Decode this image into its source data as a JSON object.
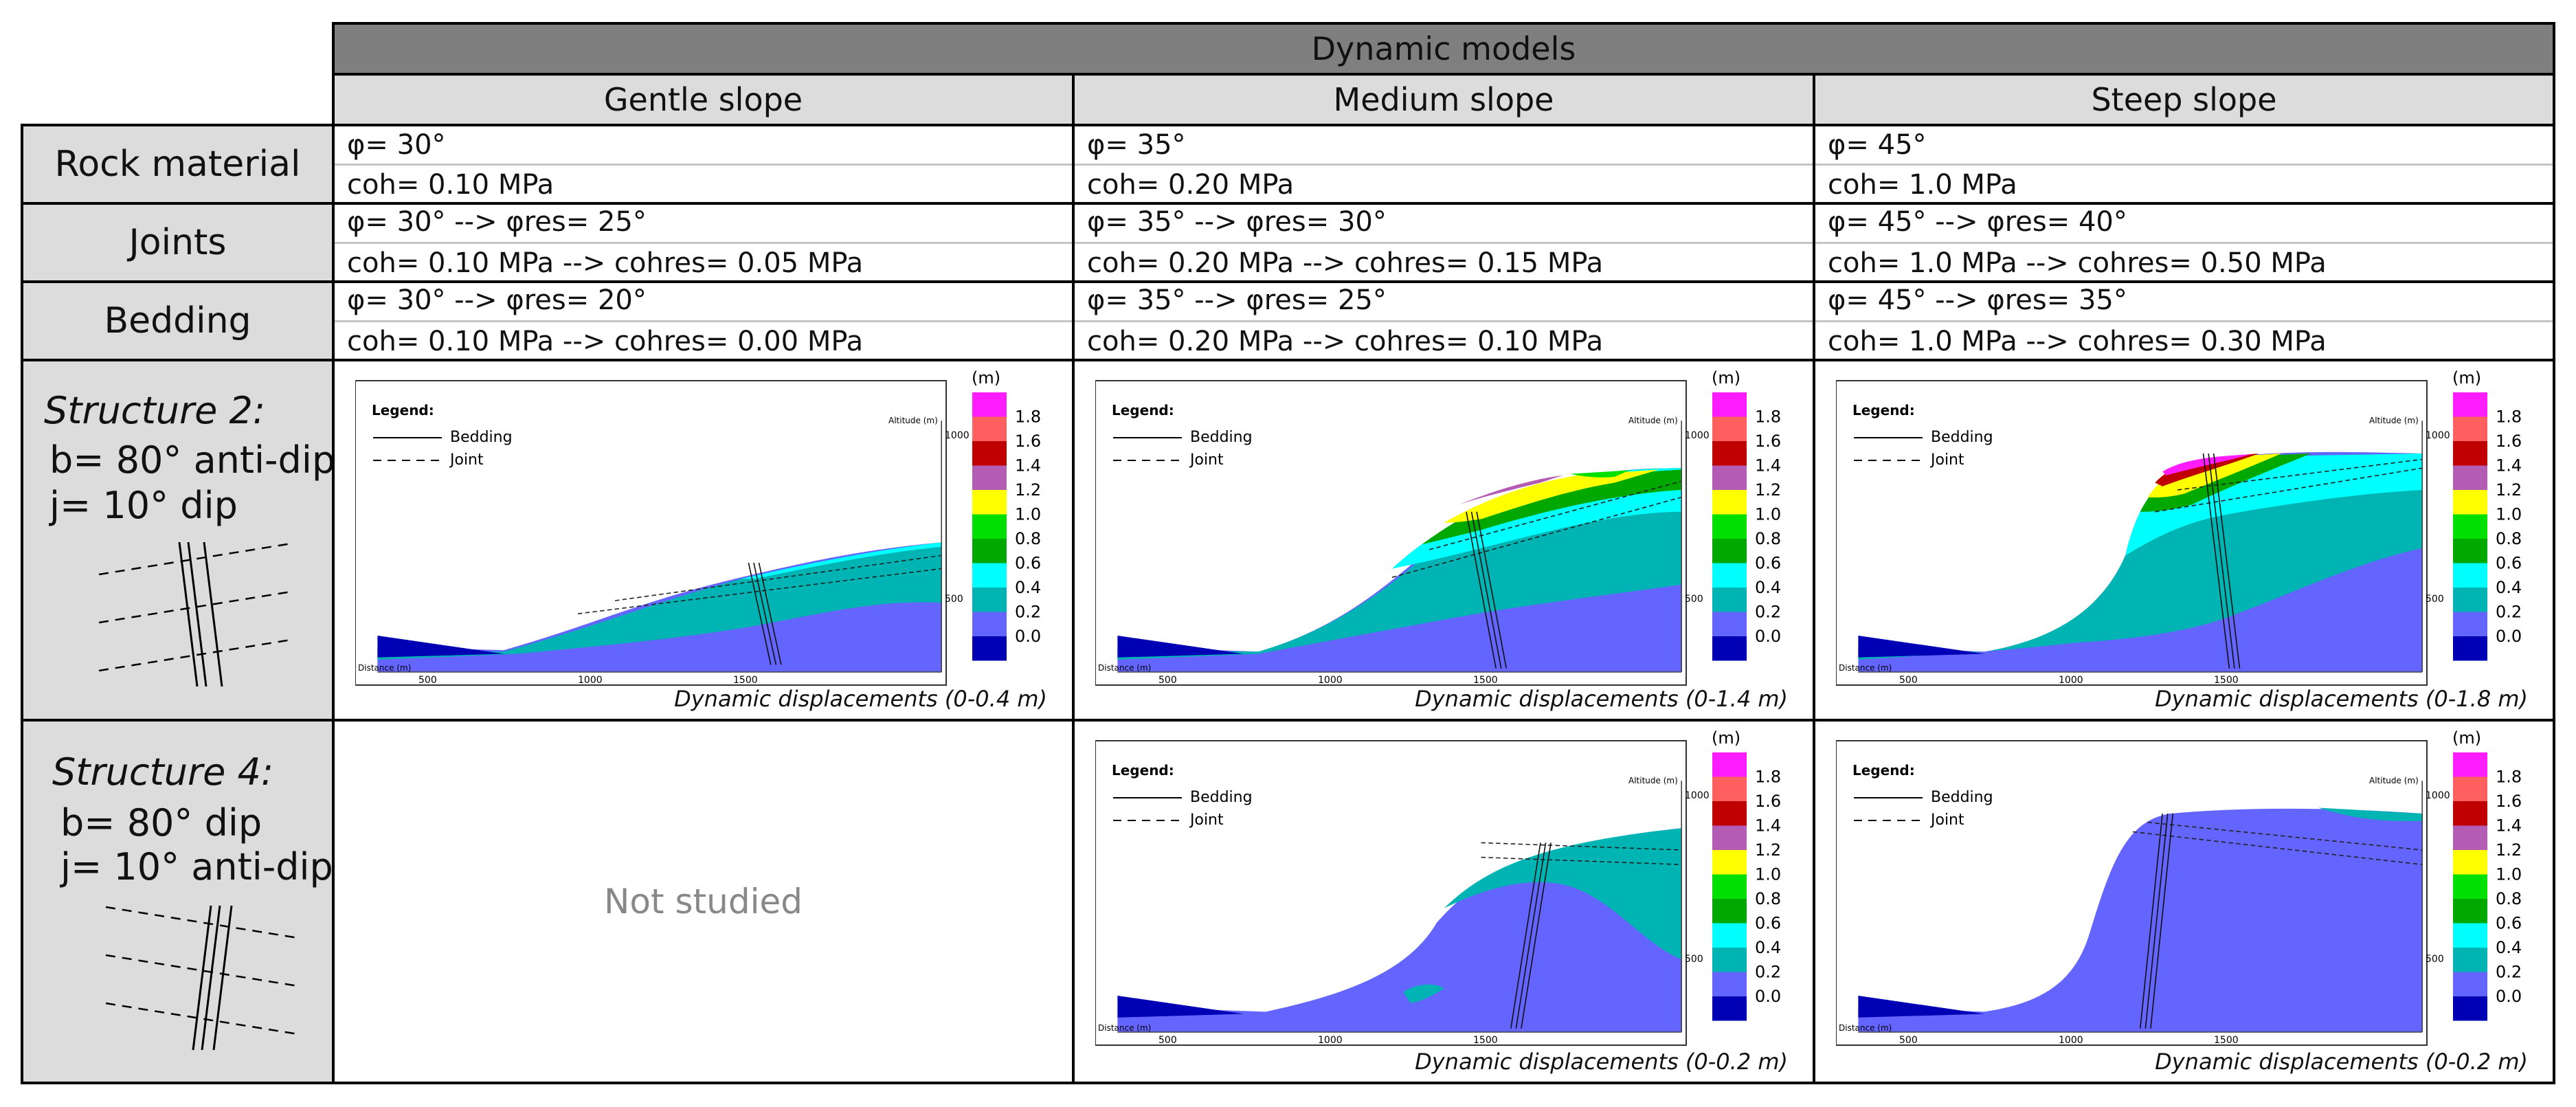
{
  "header": {
    "top": "Dynamic models",
    "cols": [
      "Gentle slope",
      "Medium slope",
      "Steep slope"
    ]
  },
  "rows": [
    {
      "label": "Rock material",
      "cells": [
        [
          "φ= 30°",
          "coh= 0.10 MPa"
        ],
        [
          "φ= 35°",
          "coh= 0.20 MPa"
        ],
        [
          "φ= 45°",
          "coh= 1.0 MPa"
        ]
      ]
    },
    {
      "label": "Joints",
      "cells": [
        [
          "φ= 30° --> φres= 25°",
          "coh= 0.10 MPa --> cohres= 0.05 MPa"
        ],
        [
          "φ= 35° --> φres= 30°",
          "coh= 0.20 MPa --> cohres= 0.15 MPa"
        ],
        [
          "φ= 45° --> φres= 40°",
          "coh= 1.0 MPa --> cohres= 0.50 MPa"
        ]
      ]
    },
    {
      "label": "Bedding",
      "cells": [
        [
          "φ= 30° --> φres= 20°",
          "coh= 0.10 MPa --> cohres= 0.00 MPa"
        ],
        [
          "φ= 35° --> φres= 25°",
          "coh= 0.20 MPa --> cohres= 0.10 MPa"
        ],
        [
          "φ= 45° --> φres= 35°",
          "coh= 1.0 MPa --> cohres= 0.30 MPa"
        ]
      ]
    }
  ],
  "structures": [
    {
      "title": "Structure 2:",
      "b": "b= 80° anti-dip",
      "j": "j= 10° dip"
    },
    {
      "title": "Structure 4:",
      "b": "b= 80° dip",
      "j": "j= 10° anti-dip"
    }
  ],
  "plot_labels": {
    "legend_title": "Legend:",
    "bedding": "Bedding",
    "joint": "Joint",
    "altitude": "Altitude (m)",
    "distance": "Distance (m)",
    "x_ticks": [
      "500",
      "1000",
      "1500"
    ],
    "y_ticks": [
      "1000",
      "500"
    ]
  },
  "colorbar": {
    "unit": "(m)",
    "labels": [
      "1.8",
      "1.6",
      "1.4",
      "1.2",
      "1.0",
      "0.8",
      "0.6",
      "0.4",
      "0.2",
      "0.0"
    ],
    "colors": [
      "#ff1cff",
      "#ff5f5f",
      "#c00000",
      "#b45cb4",
      "#ffff00",
      "#00e000",
      "#00a800",
      "#00ffff",
      "#00b4b4",
      "#6464ff",
      "#0000b4"
    ]
  },
  "captions": {
    "s2_gentle": "Dynamic displacements (0-0.4 m)",
    "s2_medium": "Dynamic displacements (0-1.4 m)",
    "s2_steep": "Dynamic displacements (0-1.8 m)",
    "s4_gentle": "Not studied",
    "s4_medium": "Dynamic displacements (0-0.2 m)",
    "s4_steep": "Dynamic displacements (0-0.2 m)"
  }
}
